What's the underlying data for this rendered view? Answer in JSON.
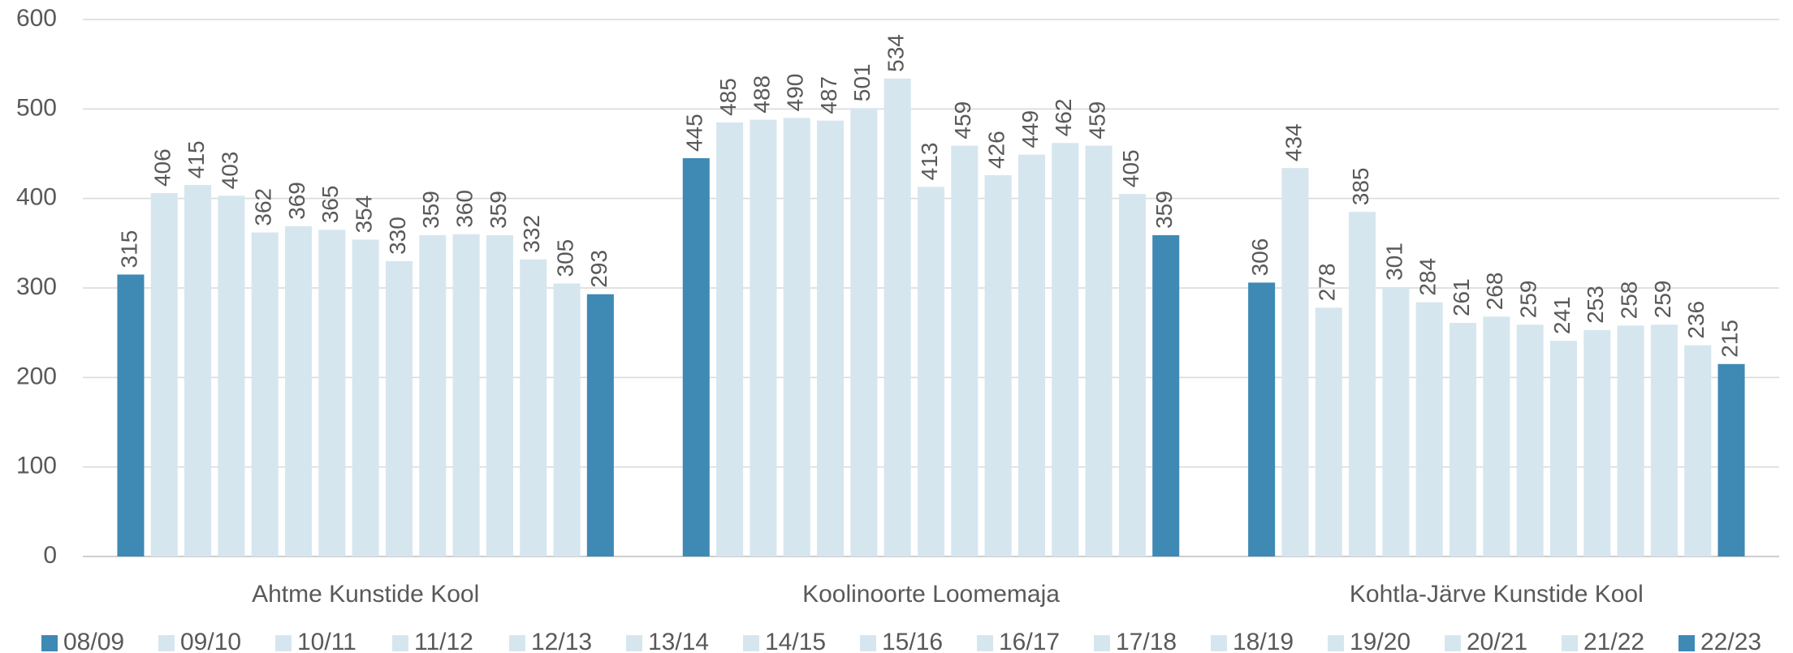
{
  "chart_data": {
    "type": "bar",
    "categories": [
      "Ahtme Kunstide Kool",
      "Koolinoorte Loomemaja",
      "Kohtla-Järve Kunstide Kool"
    ],
    "series": [
      {
        "name": "08/09",
        "color": "#3f89b5",
        "values": [
          315,
          445,
          306
        ]
      },
      {
        "name": "09/10",
        "color": "#d6e6ef",
        "values": [
          406,
          485,
          434
        ]
      },
      {
        "name": "10/11",
        "color": "#d6e6ef",
        "values": [
          415,
          488,
          278
        ]
      },
      {
        "name": "11/12",
        "color": "#d6e6ef",
        "values": [
          403,
          490,
          385
        ]
      },
      {
        "name": "12/13",
        "color": "#d6e6ef",
        "values": [
          362,
          487,
          301
        ]
      },
      {
        "name": "13/14",
        "color": "#d6e6ef",
        "values": [
          369,
          501,
          284
        ]
      },
      {
        "name": "14/15",
        "color": "#d6e6ef",
        "values": [
          365,
          534,
          261
        ]
      },
      {
        "name": "15/16",
        "color": "#d6e6ef",
        "values": [
          354,
          413,
          268
        ]
      },
      {
        "name": "16/17",
        "color": "#d6e6ef",
        "values": [
          330,
          459,
          259
        ]
      },
      {
        "name": "17/18",
        "color": "#d6e6ef",
        "values": [
          359,
          426,
          241
        ]
      },
      {
        "name": "18/19",
        "color": "#d6e6ef",
        "values": [
          360,
          449,
          253
        ]
      },
      {
        "name": "19/20",
        "color": "#d6e6ef",
        "values": [
          359,
          462,
          258
        ]
      },
      {
        "name": "20/21",
        "color": "#d6e6ef",
        "values": [
          332,
          459,
          259
        ]
      },
      {
        "name": "21/22",
        "color": "#d6e6ef",
        "values": [
          305,
          405,
          236
        ]
      },
      {
        "name": "22/23",
        "color": "#3f89b5",
        "values": [
          293,
          359,
          215
        ]
      }
    ],
    "ylim": [
      0,
      600
    ],
    "yticks": [
      0,
      100,
      200,
      300,
      400,
      500,
      600
    ],
    "grid": true,
    "legend": "bottom"
  }
}
